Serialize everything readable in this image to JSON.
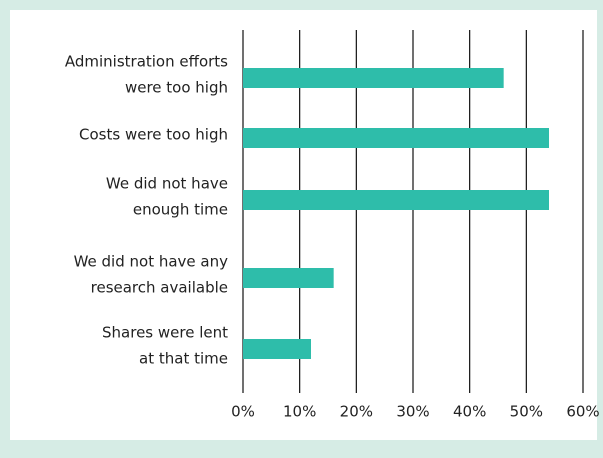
{
  "chart_data": {
    "type": "hbar",
    "categories": [
      [
        "Administration efforts",
        "were too high"
      ],
      [
        "Costs were too high"
      ],
      [
        "We did not have",
        "enough time"
      ],
      [
        "We did not have any",
        "research available"
      ],
      [
        "Shares were lent",
        "at that time"
      ]
    ],
    "values": [
      46,
      54,
      54,
      16,
      12
    ],
    "color": "#2ebdaa",
    "xlim": [
      0,
      60
    ],
    "xticks": [
      {
        "value": 0,
        "label": "0%"
      },
      {
        "value": 10,
        "label": "10%"
      },
      {
        "value": 20,
        "label": "20%"
      },
      {
        "value": 30,
        "label": "30%"
      },
      {
        "value": 40,
        "label": "40%"
      },
      {
        "value": 50,
        "label": "50%"
      },
      {
        "value": 60,
        "label": "60%"
      }
    ],
    "grid": true
  }
}
